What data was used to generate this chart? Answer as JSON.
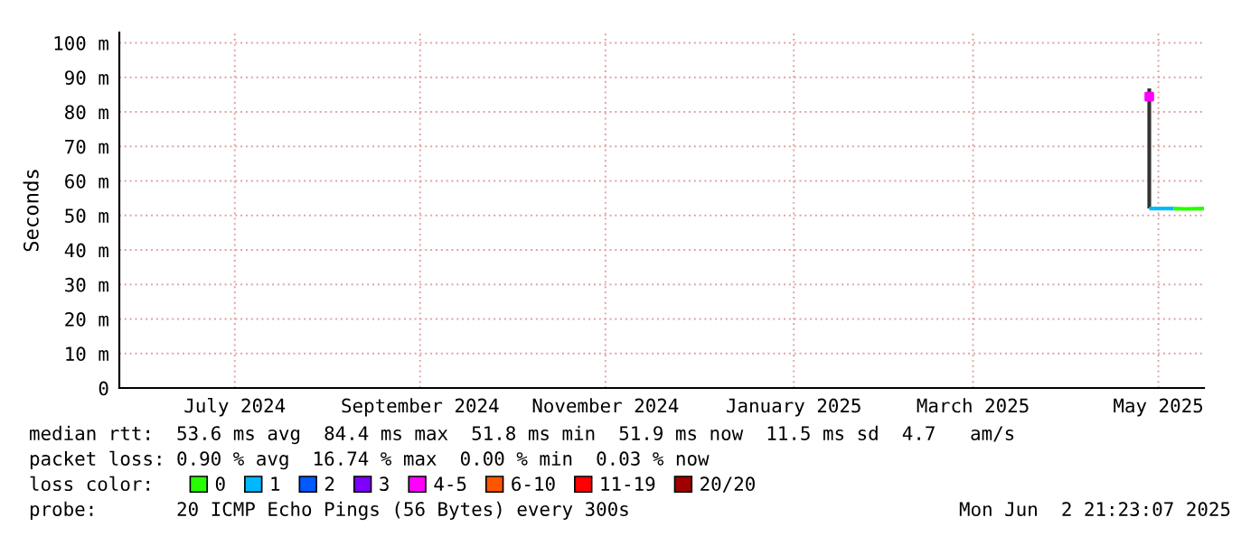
{
  "chart_data": {
    "type": "line",
    "ylabel": "Seconds",
    "legend_title": "loss color:",
    "legend": "bottom",
    "grid": true,
    "xlim": [
      "2024-06-08",
      "2025-05-31"
    ],
    "xticks": [
      {
        "value": "2024-07-16",
        "label": "July 2024"
      },
      {
        "value": "2024-09-15",
        "label": "September 2024"
      },
      {
        "value": "2024-11-15",
        "label": "November 2024"
      },
      {
        "value": "2025-01-16",
        "label": "January 2025"
      },
      {
        "value": "2025-03-16",
        "label": "March 2025"
      },
      {
        "value": "2025-05-16",
        "label": "May 2025"
      }
    ],
    "ylim": [
      0,
      103
    ],
    "yticks": [
      0,
      {
        "value": 10,
        "label": "10 m"
      },
      {
        "value": 20,
        "label": "20 m"
      },
      {
        "value": 30,
        "label": "30 m"
      },
      {
        "value": 40,
        "label": "40 m"
      },
      {
        "value": 50,
        "label": "50 m"
      },
      {
        "value": 60,
        "label": "60 m"
      },
      {
        "value": 70,
        "label": "70 m"
      },
      {
        "value": 80,
        "label": "80 m"
      },
      {
        "value": 90,
        "label": "90 m"
      },
      {
        "value": 100,
        "label": "100 m"
      }
    ],
    "series": [
      {
        "color": "#333333",
        "x": [
          "2025-05-13",
          "2025-05-13"
        ],
        "values": [
          52,
          86.8
        ]
      },
      {
        "name": "0",
        "color": "#26ff00",
        "x": [
          "2025-05-21",
          "2025-05-25",
          "2025-05-31"
        ],
        "values": [
          52,
          51.9,
          52
        ]
      },
      {
        "name": "1",
        "color": "#00b8ff",
        "x": [
          "2025-05-13",
          "2025-05-17",
          "2025-05-21"
        ],
        "values": [
          52,
          52,
          52
        ]
      },
      {
        "name": "2",
        "color": "#0059ff"
      },
      {
        "name": "3",
        "color": "#7e00ff"
      },
      {
        "type": "scatter",
        "name": "4-5",
        "color": "#ff00ff",
        "x": [
          "2025-05-13"
        ],
        "values": [
          84.4
        ]
      },
      {
        "name": "6-10",
        "color": "#ff5500"
      },
      {
        "name": "11-19",
        "color": "#ff0000"
      },
      {
        "name": "20/20",
        "color": "#a10000"
      }
    ],
    "annotations": [
      "median rtt:  53.6 ms avg  84.4 ms max  51.8 ms min  51.9 ms now  11.5 ms sd  4.7   am/s",
      "packet loss: 0.90 % avg  16.74 % max  0.00 % min  0.03 % now",
      "probe:       20 ICMP Echo Pings (56 Bytes) every 300s",
      "Mon Jun  2 21:23:07 2025"
    ]
  }
}
